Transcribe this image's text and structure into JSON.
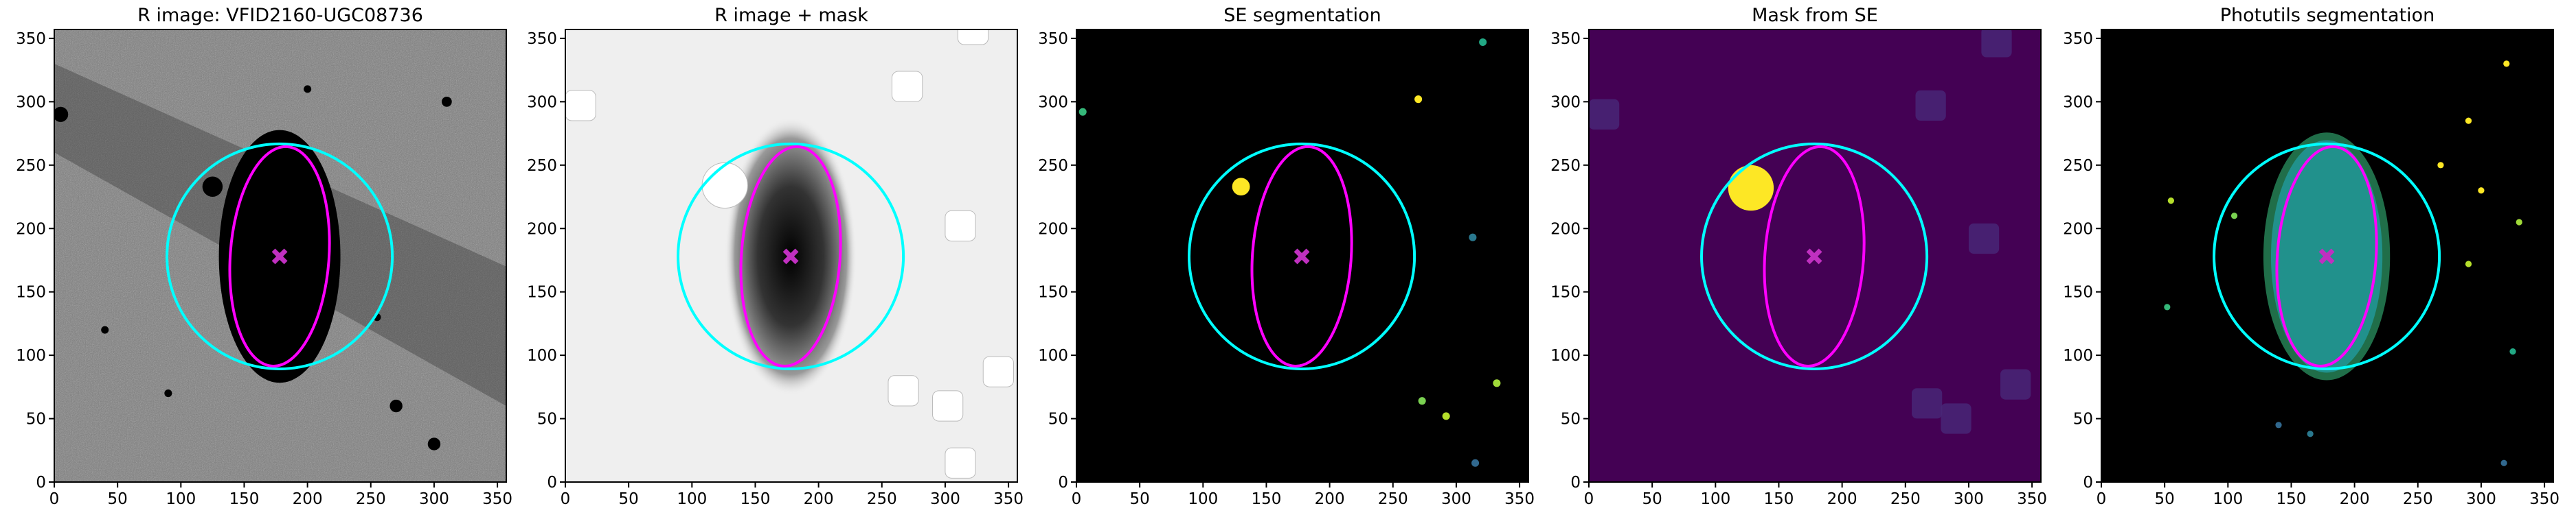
{
  "chart_data": [
    {
      "type": "image",
      "title": "R image: VFID2160-UGC08736",
      "xlim": [
        0,
        357
      ],
      "ylim": [
        0,
        357
      ],
      "xticks": [
        0,
        50,
        100,
        150,
        200,
        250,
        300,
        350
      ],
      "yticks": [
        0,
        50,
        100,
        150,
        200,
        250,
        300,
        350
      ],
      "center": [
        178,
        178
      ],
      "circle_radius": 89,
      "ellipse_axes": [
        39,
        87
      ],
      "circle_color": "#00ffff",
      "ellipse_color": "#ff00ff",
      "marker_color": "#c030c0"
    },
    {
      "type": "image",
      "title": "R image + mask",
      "xlim": [
        0,
        357
      ],
      "ylim": [
        0,
        357
      ],
      "xticks": [
        0,
        50,
        100,
        150,
        200,
        250,
        300,
        350
      ],
      "yticks": [
        0,
        50,
        100,
        150,
        200,
        250,
        300,
        350
      ],
      "center": [
        178,
        178
      ],
      "circle_radius": 89,
      "ellipse_axes": [
        39,
        87
      ],
      "circle_color": "#00ffff",
      "ellipse_color": "#ff00ff",
      "marker_color": "#c030c0"
    },
    {
      "type": "image",
      "title": "SE segmentation",
      "xlim": [
        0,
        357
      ],
      "ylim": [
        0,
        357
      ],
      "xticks": [
        0,
        50,
        100,
        150,
        200,
        250,
        300,
        350
      ],
      "yticks": [
        0,
        50,
        100,
        150,
        200,
        250,
        300,
        350
      ],
      "center": [
        178,
        178
      ],
      "circle_radius": 89,
      "ellipse_axes": [
        39,
        87
      ],
      "circle_color": "#00ffff",
      "ellipse_color": "#ff00ff",
      "marker_color": "#c030c0"
    },
    {
      "type": "image",
      "title": "Mask from SE",
      "xlim": [
        0,
        357
      ],
      "ylim": [
        0,
        357
      ],
      "xticks": [
        0,
        50,
        100,
        150,
        200,
        250,
        300,
        350
      ],
      "yticks": [
        0,
        50,
        100,
        150,
        200,
        250,
        300,
        350
      ],
      "center": [
        178,
        178
      ],
      "circle_radius": 89,
      "ellipse_axes": [
        39,
        87
      ],
      "circle_color": "#00ffff",
      "ellipse_color": "#ff00ff",
      "marker_color": "#c030c0"
    },
    {
      "type": "image",
      "title": "Photutils segmentation",
      "xlim": [
        0,
        357
      ],
      "ylim": [
        0,
        357
      ],
      "xticks": [
        0,
        50,
        100,
        150,
        200,
        250,
        300,
        350
      ],
      "yticks": [
        0,
        50,
        100,
        150,
        200,
        250,
        300,
        350
      ],
      "center": [
        178,
        178
      ],
      "circle_radius": 89,
      "ellipse_axes": [
        39,
        87
      ],
      "circle_color": "#00ffff",
      "ellipse_color": "#ff00ff",
      "marker_color": "#c030c0"
    }
  ]
}
